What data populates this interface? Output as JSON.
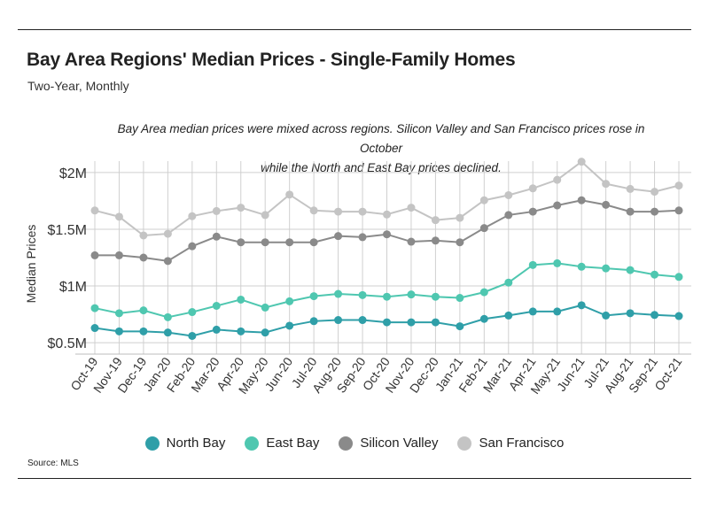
{
  "header": {
    "title": "Bay Area Regions' Median Prices - Single-Family Homes",
    "subtitle": "Two-Year, Monthly"
  },
  "annotation": {
    "line1": "Bay Area median prices were mixed across regions. Silicon Valley and San Francisco prices rose in October",
    "line2": "while the North and East Bay prices declined."
  },
  "source": "Source: MLS",
  "chart_data": {
    "type": "line",
    "title": "Bay Area Regions' Median Prices - Single-Family Homes",
    "subtitle": "Two-Year, Monthly",
    "xlabel": "",
    "ylabel": "Median Prices",
    "ylim": [
      400000,
      2100000
    ],
    "yticks": [
      {
        "value": 500000,
        "label": "$0.5M"
      },
      {
        "value": 1000000,
        "label": "$1M"
      },
      {
        "value": 1500000,
        "label": "$1.5M"
      },
      {
        "value": 2000000,
        "label": "$2M"
      }
    ],
    "grid": true,
    "legend_position": "bottom",
    "categories": [
      "Oct-19",
      "Nov-19",
      "Dec-19",
      "Jan-20",
      "Feb-20",
      "Mar-20",
      "Apr-20",
      "May-20",
      "Jun-20",
      "Jul-20",
      "Aug-20",
      "Sep-20",
      "Oct-20",
      "Nov-20",
      "Dec-20",
      "Jan-21",
      "Feb-21",
      "Mar-21",
      "Apr-21",
      "May-21",
      "Jun-21",
      "Jul-21",
      "Aug-21",
      "Sep-21",
      "Oct-21"
    ],
    "series": [
      {
        "name": "North Bay",
        "color": "#2f9fa8",
        "values": [
          630000,
          600000,
          600000,
          590000,
          560000,
          615000,
          600000,
          590000,
          650000,
          690000,
          700000,
          700000,
          680000,
          680000,
          680000,
          645000,
          710000,
          740000,
          775000,
          775000,
          830000,
          740000,
          760000,
          745000,
          735000
        ]
      },
      {
        "name": "East Bay",
        "color": "#4fc7b0",
        "values": [
          805000,
          760000,
          785000,
          725000,
          770000,
          825000,
          880000,
          810000,
          865000,
          910000,
          930000,
          920000,
          905000,
          925000,
          905000,
          895000,
          945000,
          1030000,
          1185000,
          1200000,
          1170000,
          1155000,
          1140000,
          1100000,
          1080000
        ]
      },
      {
        "name": "Silicon Valley",
        "color": "#8a8a8a",
        "values": [
          1270000,
          1270000,
          1250000,
          1220000,
          1350000,
          1435000,
          1385000,
          1385000,
          1385000,
          1385000,
          1440000,
          1430000,
          1455000,
          1390000,
          1400000,
          1385000,
          1510000,
          1625000,
          1655000,
          1710000,
          1755000,
          1715000,
          1655000,
          1655000,
          1665000
        ]
      },
      {
        "name": "San Francisco",
        "color": "#c4c4c4",
        "values": [
          1665000,
          1610000,
          1445000,
          1460000,
          1615000,
          1660000,
          1690000,
          1625000,
          1805000,
          1665000,
          1655000,
          1655000,
          1630000,
          1690000,
          1580000,
          1600000,
          1755000,
          1800000,
          1860000,
          1935000,
          2095000,
          1900000,
          1855000,
          1830000,
          1885000
        ]
      }
    ]
  }
}
